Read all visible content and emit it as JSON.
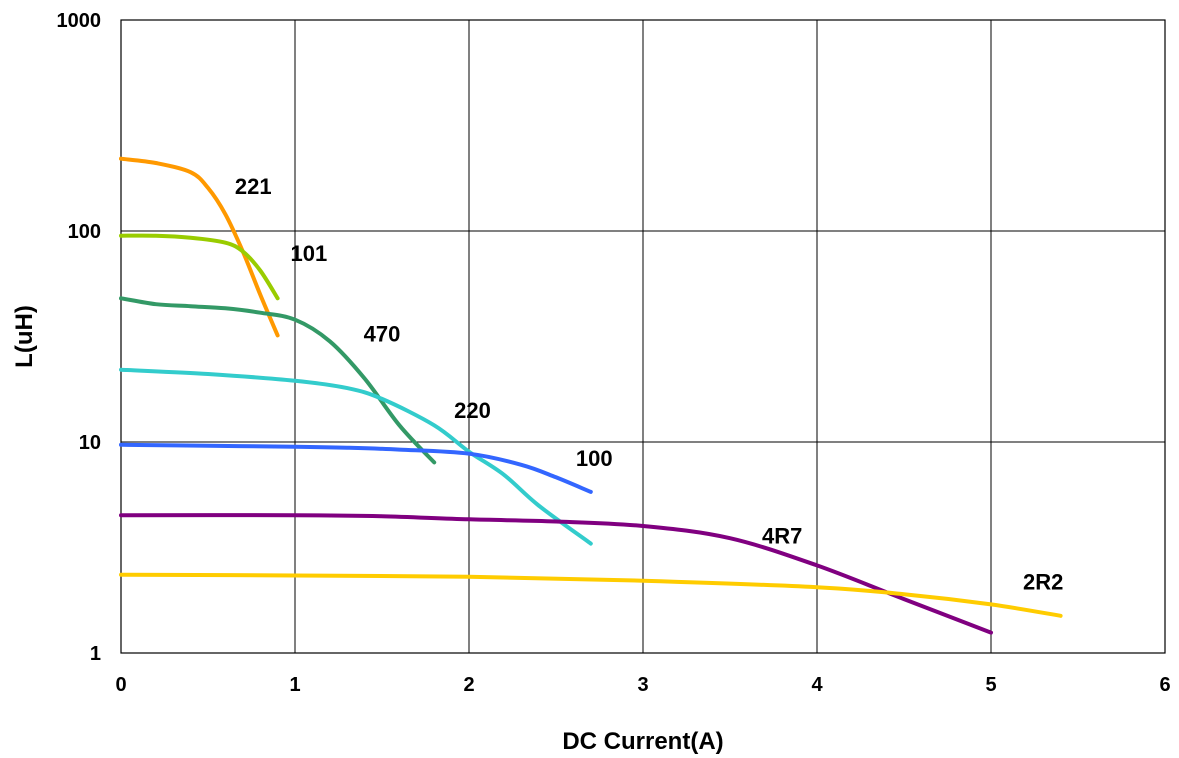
{
  "chart_data": {
    "type": "line",
    "title": "",
    "xlabel": "DC Current(A)",
    "ylabel": "L(uH)",
    "xlim": [
      0,
      6
    ],
    "ylim": [
      1,
      1000
    ],
    "yscale": "log",
    "grid": true,
    "x_ticks": [
      "0",
      "1",
      "2",
      "3",
      "4",
      "5",
      "6"
    ],
    "y_ticks": [
      "1",
      "10",
      "100",
      "1000"
    ],
    "series": [
      {
        "name": "221",
        "color": "#FF9900",
        "points": [
          [
            0,
            220
          ],
          [
            0.2,
            210
          ],
          [
            0.4,
            190
          ],
          [
            0.5,
            160
          ],
          [
            0.6,
            120
          ],
          [
            0.7,
            80
          ],
          [
            0.8,
            50
          ],
          [
            0.9,
            32
          ]
        ]
      },
      {
        "name": "101",
        "color": "#99CC00",
        "points": [
          [
            0,
            95
          ],
          [
            0.2,
            95
          ],
          [
            0.4,
            93
          ],
          [
            0.6,
            88
          ],
          [
            0.7,
            80
          ],
          [
            0.8,
            65
          ],
          [
            0.9,
            48
          ]
        ]
      },
      {
        "name": "470",
        "color": "#339966",
        "points": [
          [
            0,
            48
          ],
          [
            0.2,
            45
          ],
          [
            0.4,
            44
          ],
          [
            0.6,
            43
          ],
          [
            0.8,
            41
          ],
          [
            1.0,
            38
          ],
          [
            1.2,
            30
          ],
          [
            1.4,
            20
          ],
          [
            1.6,
            12
          ],
          [
            1.8,
            8
          ]
        ]
      },
      {
        "name": "220",
        "color": "#33CCCC",
        "points": [
          [
            0,
            22
          ],
          [
            0.5,
            21
          ],
          [
            1.0,
            19.5
          ],
          [
            1.3,
            18
          ],
          [
            1.5,
            16
          ],
          [
            1.8,
            12
          ],
          [
            2.0,
            9
          ],
          [
            2.2,
            7
          ],
          [
            2.4,
            5
          ],
          [
            2.7,
            3.3
          ]
        ]
      },
      {
        "name": "100",
        "color": "#3366FF",
        "points": [
          [
            0,
            9.7
          ],
          [
            0.5,
            9.6
          ],
          [
            1.0,
            9.5
          ],
          [
            1.3,
            9.4
          ],
          [
            1.6,
            9.2
          ],
          [
            2.0,
            8.8
          ],
          [
            2.3,
            7.8
          ],
          [
            2.5,
            6.8
          ],
          [
            2.7,
            5.8
          ]
        ]
      },
      {
        "name": "4R7",
        "color": "#800080",
        "points": [
          [
            0,
            4.5
          ],
          [
            1.0,
            4.5
          ],
          [
            1.5,
            4.45
          ],
          [
            2.0,
            4.3
          ],
          [
            2.5,
            4.2
          ],
          [
            3.0,
            4.0
          ],
          [
            3.5,
            3.5
          ],
          [
            4.0,
            2.6
          ],
          [
            4.5,
            1.8
          ],
          [
            5.0,
            1.25
          ]
        ]
      },
      {
        "name": "2R2",
        "color": "#FFCC00",
        "points": [
          [
            0,
            2.35
          ],
          [
            1.0,
            2.33
          ],
          [
            2.0,
            2.3
          ],
          [
            3.0,
            2.2
          ],
          [
            4.0,
            2.05
          ],
          [
            4.5,
            1.9
          ],
          [
            5.0,
            1.7
          ],
          [
            5.4,
            1.5
          ]
        ]
      }
    ],
    "labels": [
      {
        "text": "221",
        "x": 0.76,
        "y": 150
      },
      {
        "text": "101",
        "x": 1.08,
        "y": 72
      },
      {
        "text": "470",
        "x": 1.5,
        "y": 30
      },
      {
        "text": "220",
        "x": 2.02,
        "y": 13
      },
      {
        "text": "100",
        "x": 2.72,
        "y": 7.7
      },
      {
        "text": "4R7",
        "x": 3.8,
        "y": 3.3
      },
      {
        "text": "2R2",
        "x": 5.3,
        "y": 2.0
      }
    ]
  }
}
